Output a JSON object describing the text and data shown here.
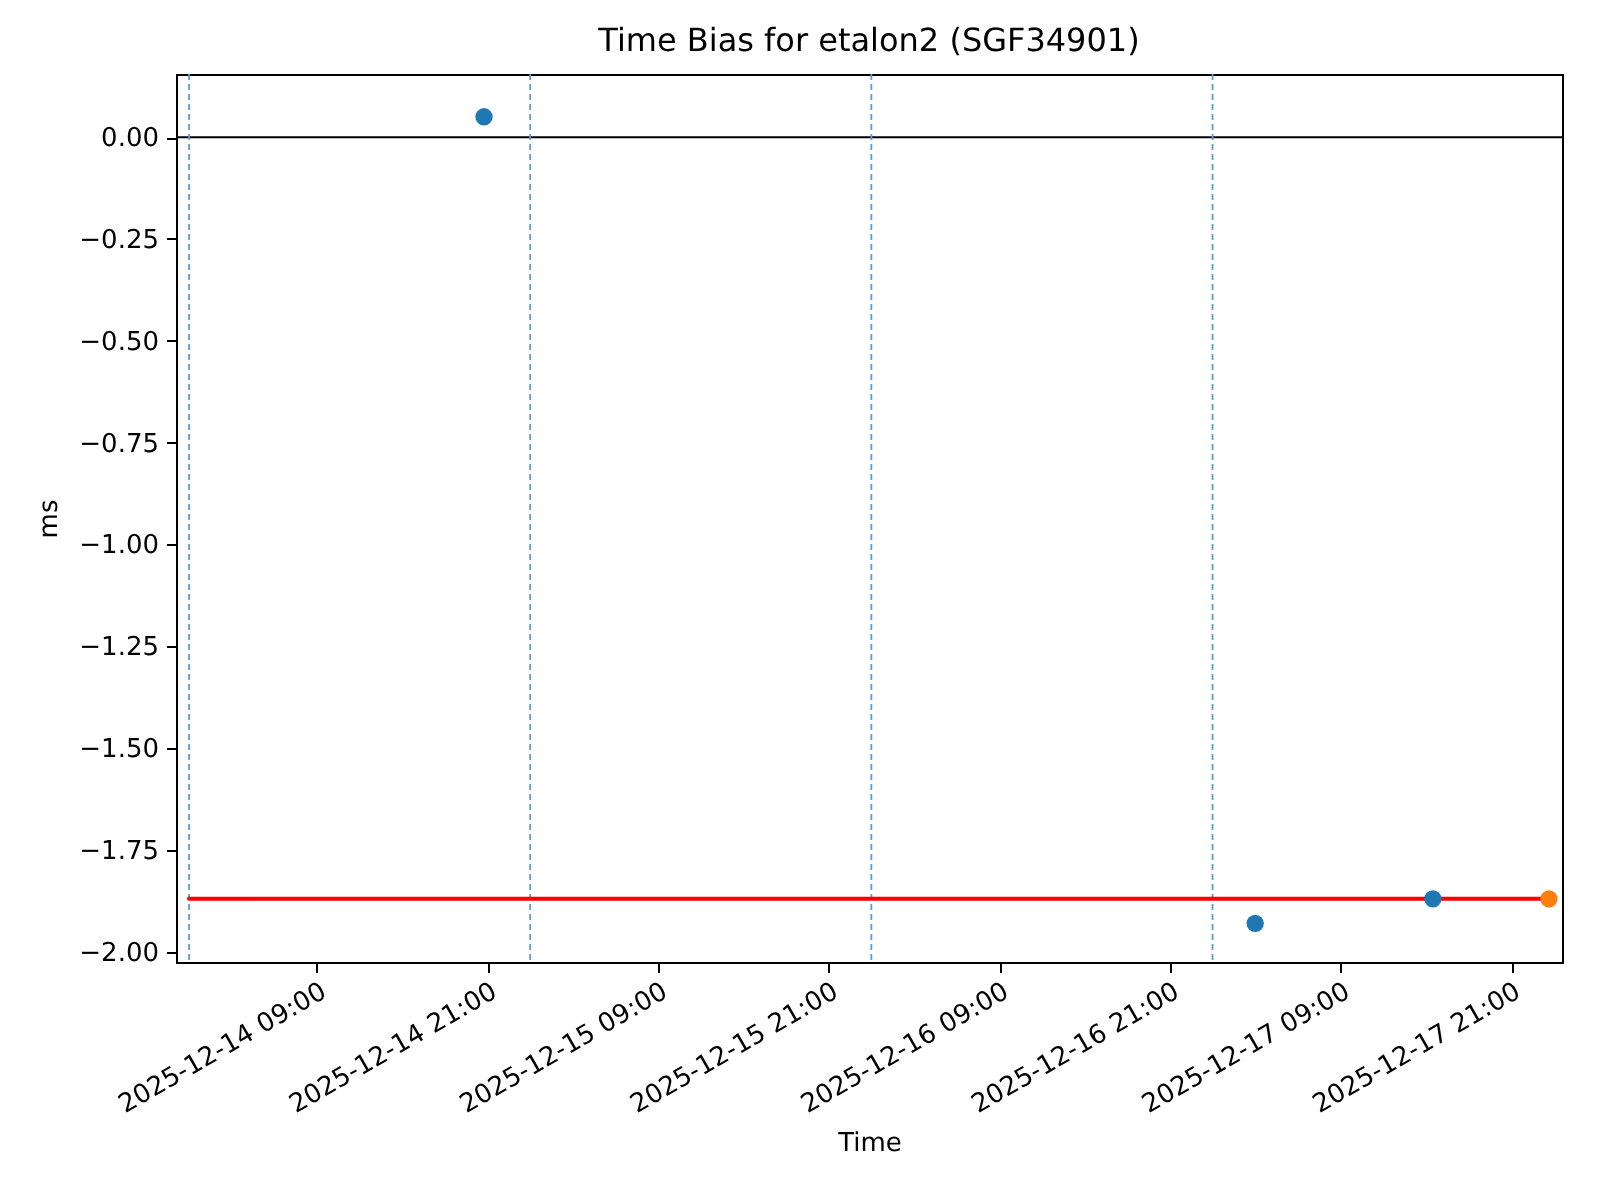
{
  "chart_data": {
    "type": "scatter",
    "title": "Time Bias for etalon2 (SGF34901)",
    "xlabel": "Time",
    "ylabel": "ms",
    "series": [
      {
        "type": "line",
        "color": "#ff0000",
        "line_style": "solid",
        "x": [
          "2025-12-14T00:00",
          "2025-12-17T23:40"
        ],
        "values": [
          -1.87,
          -1.87
        ]
      },
      {
        "color": "#1f77b4",
        "marker": "circle",
        "x": [
          "2025-12-14T20:45",
          "2025-12-17T03:00",
          "2025-12-17T15:30"
        ],
        "values": [
          0.05,
          -1.93,
          -1.87
        ]
      },
      {
        "color": "#ff7f0e",
        "marker": "circle",
        "x": [
          "2025-12-17T23:40"
        ],
        "values": [
          -1.87
        ]
      }
    ],
    "xlim": [
      "2025-12-13T23:05",
      "2025-12-18T00:35"
    ],
    "xticks": [
      {
        "value": "2025-12-14T09:00",
        "label": "2025-12-14 09:00"
      },
      {
        "value": "2025-12-14T21:00",
        "label": "2025-12-14 21:00"
      },
      {
        "value": "2025-12-15T09:00",
        "label": "2025-12-15 09:00"
      },
      {
        "value": "2025-12-15T21:00",
        "label": "2025-12-15 21:00"
      },
      {
        "value": "2025-12-16T09:00",
        "label": "2025-12-16 09:00"
      },
      {
        "value": "2025-12-16T21:00",
        "label": "2025-12-16 21:00"
      },
      {
        "value": "2025-12-17T09:00",
        "label": "2025-12-17 09:00"
      },
      {
        "value": "2025-12-17T21:00",
        "label": "2025-12-17 21:00"
      }
    ],
    "ylim": [
      -2.025,
      0.155
    ],
    "yticks": [
      {
        "value": 0,
        "label": "0.00"
      },
      {
        "value": -0.25,
        "label": "−0.25"
      },
      {
        "value": -0.5,
        "label": "−0.50"
      },
      {
        "value": -0.75,
        "label": "−0.75"
      },
      {
        "value": -1,
        "label": "−1.00"
      },
      {
        "value": -1.25,
        "label": "−1.25"
      },
      {
        "value": -1.5,
        "label": "−1.50"
      },
      {
        "value": -1.75,
        "label": "−1.75"
      },
      {
        "value": -2,
        "label": "−2.00"
      }
    ],
    "ref_lines": [
      {
        "axis": "y",
        "value": 0,
        "color": "#000000",
        "line_style": "solid"
      },
      {
        "axis": "x",
        "value": "2025-12-14T00:00",
        "color": "#5b9bd5",
        "line_style": "dashed"
      },
      {
        "axis": "x",
        "value": "2025-12-15T00:00",
        "color": "#5b9bd5",
        "line_style": "dashed"
      },
      {
        "axis": "x",
        "value": "2025-12-16T00:00",
        "color": "#5b9bd5",
        "line_style": "dashed"
      },
      {
        "axis": "x",
        "value": "2025-12-17T00:00",
        "color": "#5b9bd5",
        "line_style": "dashed"
      }
    ]
  }
}
